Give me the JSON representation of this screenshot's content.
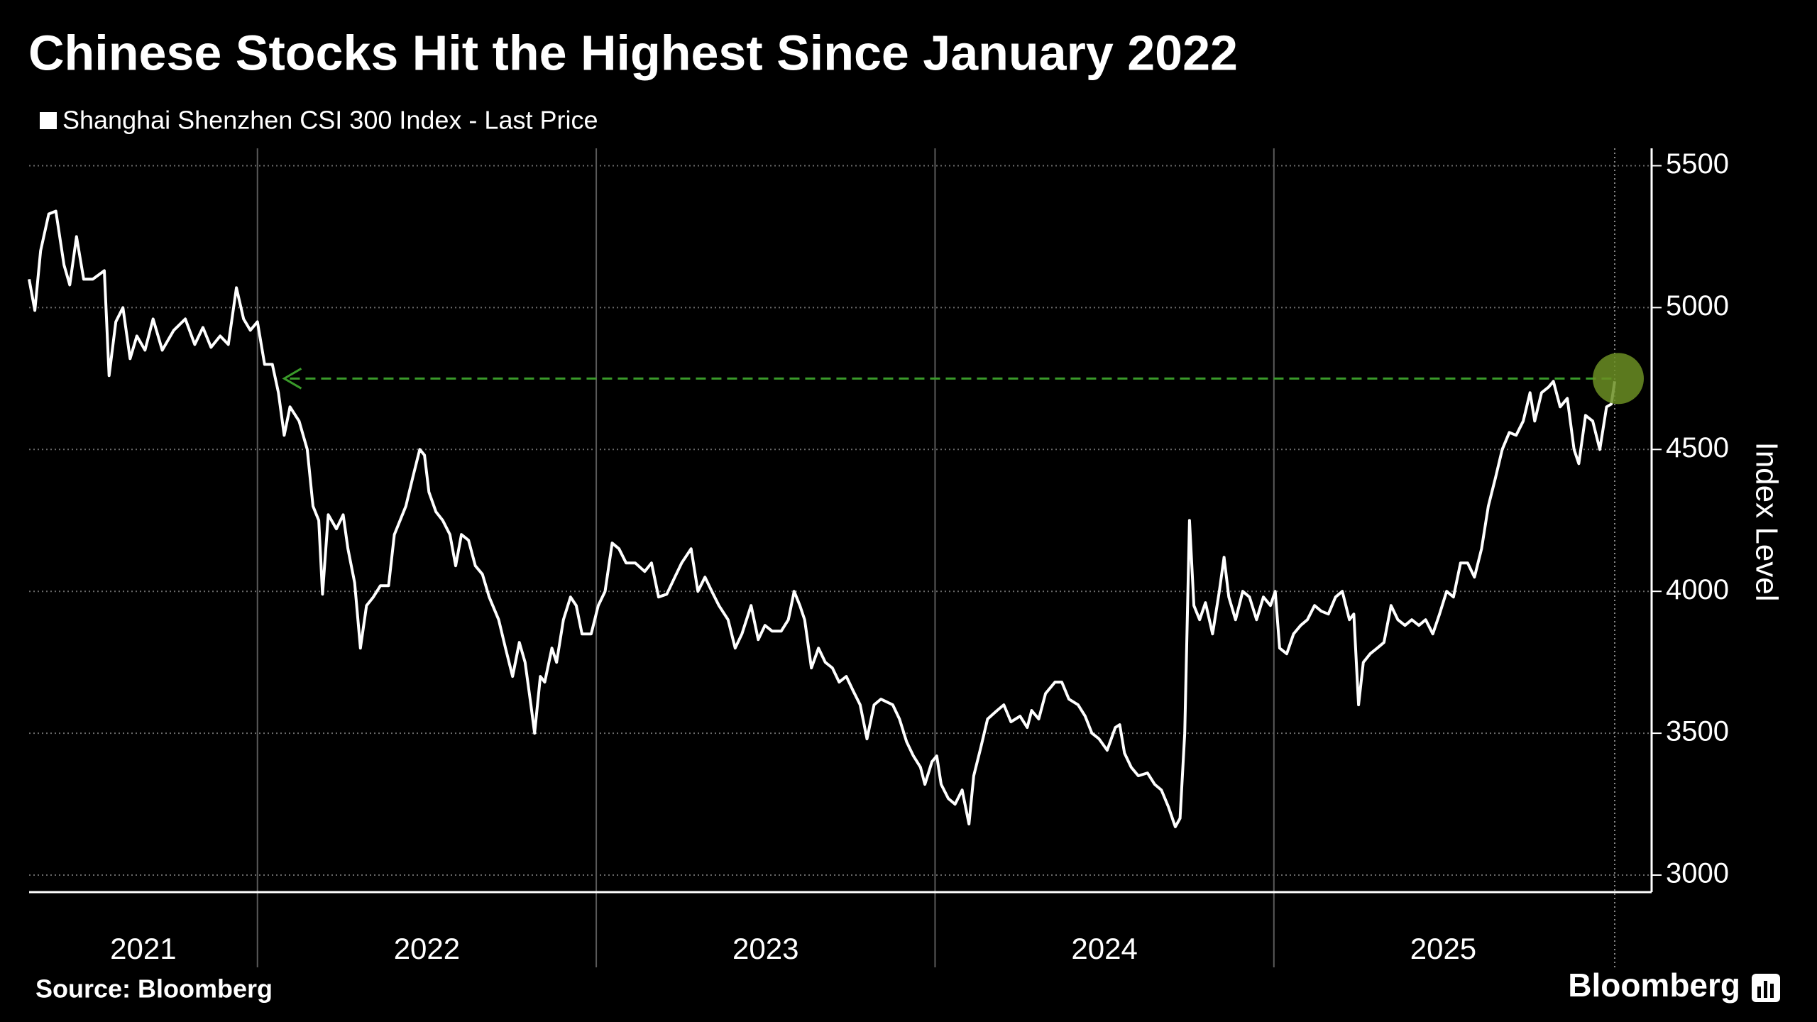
{
  "chart_data": {
    "type": "line",
    "title": "Chinese Stocks Hit the Highest Since January 2022",
    "y_label": "Index Level",
    "source": "Source: Bloomberg",
    "brand": "Bloomberg",
    "x": [
      2021.326,
      2021.343,
      2021.36,
      2021.384,
      2021.405,
      2021.429,
      2021.446,
      2021.466,
      2021.487,
      2021.514,
      2021.548,
      2021.562,
      2021.582,
      2021.603,
      2021.624,
      2021.644,
      2021.668,
      2021.692,
      2021.719,
      2021.753,
      2021.787,
      2021.815,
      2021.839,
      2021.863,
      2021.89,
      2021.914,
      2021.938,
      2021.959,
      2021.979,
      2022.0,
      2022.021,
      2022.044,
      2022.062,
      2022.079,
      2022.096,
      2022.123,
      2022.147,
      2022.164,
      2022.181,
      2022.192,
      2022.209,
      2022.233,
      2022.253,
      2022.267,
      2022.287,
      2022.304,
      2022.322,
      2022.342,
      2022.363,
      2022.387,
      2022.404,
      2022.438,
      2022.458,
      2022.479,
      2022.493,
      2022.506,
      2022.527,
      2022.547,
      2022.568,
      2022.585,
      2022.602,
      2022.623,
      2022.643,
      2022.664,
      2022.684,
      2022.712,
      2022.732,
      2022.753,
      2022.773,
      2022.79,
      2022.807,
      2022.818,
      2022.835,
      2022.848,
      2022.869,
      2022.883,
      2022.903,
      2022.924,
      2022.941,
      2022.958,
      2022.985,
      2023.006,
      2023.026,
      2023.047,
      2023.067,
      2023.088,
      2023.115,
      2023.143,
      2023.163,
      2023.184,
      2023.208,
      2023.232,
      2023.252,
      2023.28,
      2023.3,
      2023.321,
      2023.341,
      2023.362,
      2023.389,
      2023.41,
      2023.43,
      2023.457,
      2023.478,
      2023.498,
      2023.519,
      2023.546,
      2023.567,
      2023.584,
      2023.601,
      2023.615,
      2023.635,
      2023.656,
      2023.676,
      2023.697,
      2023.717,
      2023.738,
      2023.758,
      2023.779,
      2023.799,
      2023.82,
      2023.84,
      2023.875,
      2023.895,
      2023.916,
      2023.936,
      2023.957,
      2023.97,
      2023.991,
      2024.005,
      2024.018,
      2024.039,
      2024.059,
      2024.08,
      2024.1,
      2024.114,
      2024.135,
      2024.155,
      2024.183,
      2024.203,
      2024.224,
      2024.251,
      2024.272,
      2024.285,
      2024.306,
      2024.326,
      2024.354,
      2024.374,
      2024.395,
      2024.422,
      2024.443,
      2024.463,
      2024.484,
      2024.508,
      2024.532,
      2024.545,
      2024.559,
      2024.579,
      2024.6,
      2024.627,
      2024.648,
      2024.668,
      2024.689,
      2024.709,
      2024.723,
      2024.737,
      2024.751,
      2024.764,
      2024.781,
      2024.798,
      2024.819,
      2024.839,
      2024.853,
      2024.867,
      2024.887,
      2024.908,
      2024.928,
      2024.949,
      2024.969,
      2024.99,
      2025.004,
      2025.017,
      2025.038,
      2025.058,
      2025.079,
      2025.099,
      2025.12,
      2025.14,
      2025.161,
      2025.182,
      2025.202,
      2025.223,
      2025.236,
      2025.25,
      2025.264,
      2025.284,
      2025.305,
      2025.325,
      2025.346,
      2025.366,
      2025.387,
      2025.407,
      2025.428,
      2025.448,
      2025.469,
      2025.489,
      2025.51,
      2025.53,
      2025.551,
      2025.572,
      2025.592,
      2025.613,
      2025.633,
      2025.654,
      2025.674,
      2025.695,
      2025.715,
      2025.736,
      2025.756,
      2025.77,
      2025.79,
      2025.811,
      2025.825,
      2025.845,
      2025.866,
      2025.886,
      2025.9,
      2025.92,
      2025.941,
      2025.962,
      2025.982,
      2025.996,
      2026.006
    ],
    "series": [
      {
        "name": "Shanghai Shenzhen CSI 300 Index - Last Price",
        "color": "#ffffff",
        "values": [
          5100,
          4990,
          5200,
          5330,
          5340,
          5150,
          5080,
          5250,
          5100,
          5100,
          5130,
          4760,
          4950,
          5000,
          4820,
          4900,
          4850,
          4960,
          4850,
          4920,
          4960,
          4870,
          4930,
          4860,
          4900,
          4870,
          5070,
          4960,
          4920,
          4950,
          4800,
          4800,
          4700,
          4550,
          4650,
          4600,
          4500,
          4300,
          4250,
          3990,
          4270,
          4220,
          4270,
          4150,
          4030,
          3800,
          3950,
          3980,
          4020,
          4020,
          4200,
          4300,
          4400,
          4500,
          4480,
          4350,
          4280,
          4250,
          4200,
          4090,
          4200,
          4180,
          4090,
          4060,
          3980,
          3900,
          3800,
          3700,
          3820,
          3750,
          3600,
          3500,
          3700,
          3680,
          3800,
          3750,
          3900,
          3980,
          3950,
          3850,
          3850,
          3950,
          4000,
          4170,
          4150,
          4100,
          4100,
          4070,
          4100,
          3980,
          3990,
          4050,
          4100,
          4150,
          4000,
          4050,
          4000,
          3950,
          3900,
          3800,
          3850,
          3950,
          3830,
          3880,
          3860,
          3860,
          3900,
          4000,
          3950,
          3900,
          3730,
          3800,
          3750,
          3730,
          3680,
          3700,
          3650,
          3600,
          3480,
          3600,
          3620,
          3600,
          3550,
          3470,
          3420,
          3380,
          3320,
          3400,
          3420,
          3320,
          3270,
          3250,
          3300,
          3180,
          3350,
          3450,
          3550,
          3580,
          3600,
          3540,
          3560,
          3520,
          3580,
          3550,
          3640,
          3680,
          3680,
          3620,
          3600,
          3560,
          3500,
          3480,
          3440,
          3520,
          3530,
          3430,
          3380,
          3350,
          3360,
          3320,
          3300,
          3240,
          3170,
          3200,
          3500,
          4250,
          3950,
          3900,
          3960,
          3850,
          4000,
          4120,
          3980,
          3900,
          4000,
          3980,
          3900,
          3980,
          3950,
          4000,
          3800,
          3780,
          3850,
          3880,
          3900,
          3950,
          3930,
          3920,
          3980,
          4000,
          3900,
          3920,
          3600,
          3750,
          3780,
          3800,
          3820,
          3950,
          3900,
          3880,
          3900,
          3880,
          3900,
          3850,
          3920,
          4000,
          3980,
          4100,
          4100,
          4050,
          4150,
          4300,
          4400,
          4500,
          4560,
          4550,
          4600,
          4700,
          4600,
          4700,
          4720,
          4740,
          4650,
          4680,
          4500,
          4450,
          4620,
          4600,
          4500,
          4650,
          4660,
          4740
        ]
      }
    ],
    "highlight": {
      "y": 4750,
      "x_start": 2022.079,
      "x_end": 2026.006,
      "color": "#3a9a2a"
    },
    "xlim": [
      2021.326,
      2026.006
    ],
    "xticks": [
      2021,
      2022,
      2023,
      2024,
      2025
    ],
    "ylim": [
      2940,
      5560
    ],
    "yticks": [
      3000,
      3500,
      4000,
      4500,
      5000,
      5500
    ],
    "grid": true
  }
}
